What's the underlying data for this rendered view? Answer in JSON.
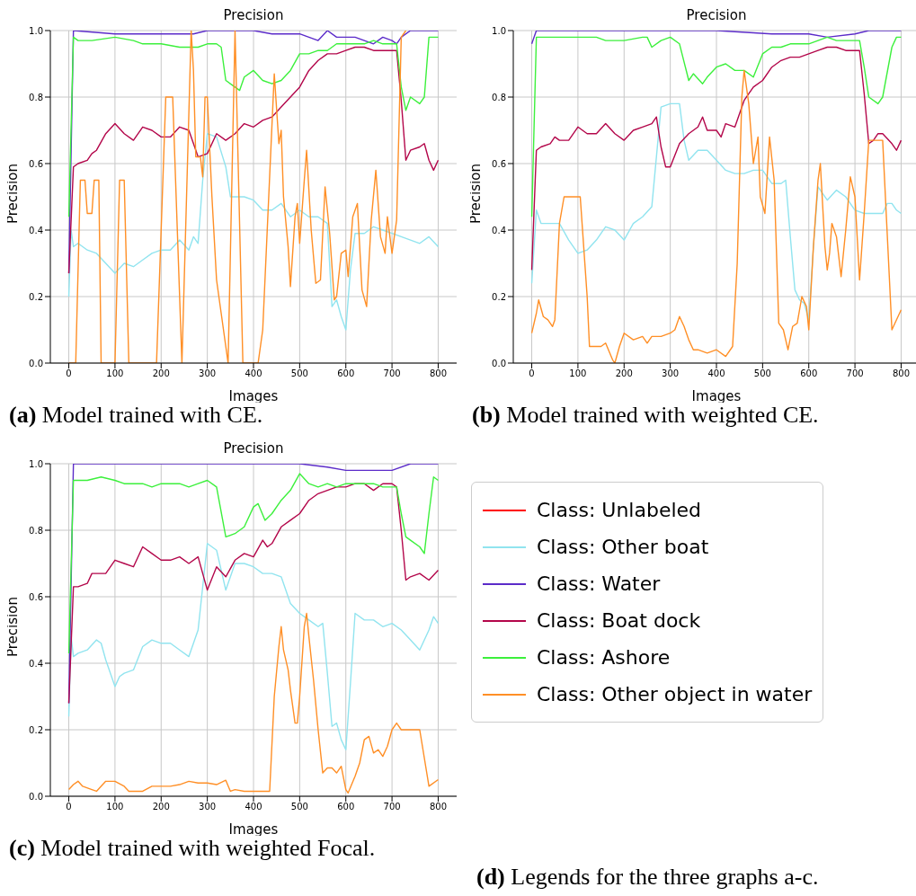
{
  "chart_data": [
    {
      "type": "line",
      "title": "Precision",
      "xlabel": "Images",
      "ylabel": "Precision",
      "annotations": [
        "(a) Model trained with CE."
      ],
      "xlim": [
        -40,
        840
      ],
      "ylim": [
        0,
        1
      ],
      "xticks": [
        0,
        100,
        200,
        300,
        400,
        500,
        600,
        700,
        800
      ],
      "yticks": [
        {
          "value": 0,
          "label": "0.0"
        },
        {
          "value": 0.2,
          "label": "0.2"
        },
        {
          "value": 0.4,
          "label": "0.4"
        },
        {
          "value": 0.6,
          "label": "0.6"
        },
        {
          "value": 0.8,
          "label": "0.8"
        },
        {
          "value": 1,
          "label": "1.0"
        }
      ],
      "grid": true,
      "legend": false,
      "series": [
        {
          "color": "#91e4ef",
          "x": [
            0,
            5,
            10,
            20,
            40,
            60,
            80,
            100,
            120,
            140,
            160,
            180,
            200,
            220,
            240,
            260,
            270,
            280,
            290,
            300,
            320,
            340,
            350,
            380,
            400,
            420,
            440,
            460,
            480,
            500,
            520,
            540,
            560,
            570,
            580,
            590,
            600,
            610,
            620,
            640,
            660,
            680,
            700,
            720,
            740,
            760,
            780,
            800
          ],
          "values": [
            0.2,
            0.4,
            0.35,
            0.36,
            0.34,
            0.33,
            0.3,
            0.27,
            0.3,
            0.29,
            0.31,
            0.33,
            0.34,
            0.34,
            0.37,
            0.34,
            0.38,
            0.36,
            0.55,
            0.69,
            0.68,
            0.59,
            0.5,
            0.5,
            0.49,
            0.46,
            0.46,
            0.48,
            0.44,
            0.46,
            0.44,
            0.44,
            0.42,
            0.17,
            0.19,
            0.14,
            0.1,
            0.28,
            0.39,
            0.39,
            0.41,
            0.4,
            0.39,
            0.38,
            0.37,
            0.36,
            0.38,
            0.35
          ]
        },
        {
          "color": "#5b2bc9",
          "x": [
            0,
            10,
            100,
            270,
            300,
            400,
            440,
            500,
            520,
            540,
            560,
            580,
            600,
            620,
            640,
            660,
            680,
            700,
            710,
            720,
            740,
            800
          ],
          "values": [
            0.27,
            1.0,
            0.99,
            0.99,
            1.0,
            1.0,
            0.99,
            0.99,
            0.98,
            0.97,
            1.0,
            0.98,
            0.98,
            0.98,
            0.97,
            0.96,
            0.98,
            0.97,
            0.96,
            0.98,
            1.0,
            1.0
          ]
        },
        {
          "color": "#b3064a",
          "x": [
            0,
            10,
            20,
            40,
            50,
            60,
            80,
            100,
            120,
            140,
            160,
            180,
            200,
            220,
            240,
            260,
            280,
            300,
            320,
            340,
            360,
            380,
            400,
            420,
            440,
            460,
            480,
            500,
            520,
            540,
            560,
            580,
            600,
            620,
            640,
            660,
            680,
            700,
            710,
            720,
            730,
            740,
            760,
            770,
            780,
            790,
            800
          ],
          "values": [
            0.27,
            0.59,
            0.6,
            0.61,
            0.63,
            0.64,
            0.69,
            0.72,
            0.69,
            0.67,
            0.71,
            0.7,
            0.68,
            0.68,
            0.71,
            0.7,
            0.62,
            0.63,
            0.69,
            0.67,
            0.69,
            0.72,
            0.71,
            0.73,
            0.74,
            0.77,
            0.8,
            0.83,
            0.88,
            0.91,
            0.93,
            0.93,
            0.94,
            0.95,
            0.95,
            0.94,
            0.94,
            0.94,
            0.94,
            0.79,
            0.61,
            0.64,
            0.65,
            0.66,
            0.61,
            0.58,
            0.61
          ]
        },
        {
          "color": "#3cf03c",
          "x": [
            0,
            10,
            20,
            50,
            100,
            140,
            160,
            200,
            240,
            280,
            300,
            320,
            330,
            340,
            360,
            370,
            380,
            400,
            420,
            440,
            460,
            480,
            500,
            520,
            540,
            560,
            580,
            600,
            620,
            640,
            660,
            680,
            700,
            710,
            720,
            730,
            740,
            760,
            770,
            780,
            800
          ],
          "values": [
            0.44,
            0.98,
            0.97,
            0.97,
            0.98,
            0.97,
            0.96,
            0.96,
            0.95,
            0.95,
            0.96,
            0.96,
            0.95,
            0.85,
            0.83,
            0.82,
            0.86,
            0.88,
            0.85,
            0.84,
            0.85,
            0.88,
            0.93,
            0.93,
            0.94,
            0.94,
            0.96,
            0.96,
            0.96,
            0.96,
            0.97,
            0.96,
            0.96,
            0.96,
            0.83,
            0.76,
            0.8,
            0.78,
            0.8,
            0.98,
            0.98
          ]
        },
        {
          "color": "#ff8f26",
          "x": [
            0,
            15,
            25,
            35,
            40,
            50,
            55,
            65,
            70,
            100,
            110,
            120,
            130,
            190,
            210,
            225,
            245,
            265,
            270,
            275,
            285,
            290,
            295,
            300,
            310,
            320,
            330,
            340,
            345,
            360,
            377,
            410,
            420,
            445,
            455,
            460,
            465,
            475,
            480,
            490,
            495,
            500,
            510,
            515,
            525,
            535,
            545,
            555,
            565,
            575,
            580,
            590,
            600,
            605,
            615,
            625,
            635,
            645,
            655,
            665,
            675,
            685,
            690,
            700,
            710,
            720,
            730
          ],
          "values": [
            0,
            0,
            0.55,
            0.55,
            0.45,
            0.45,
            0.55,
            0.55,
            0,
            0,
            0.55,
            0.55,
            0,
            0,
            0.8,
            0.8,
            0,
            1.0,
            0.88,
            0.62,
            0.62,
            0.56,
            0.8,
            0.8,
            0.5,
            0.25,
            0.15,
            0.05,
            0,
            1.0,
            0,
            0,
            0.1,
            0.87,
            0.66,
            0.7,
            0.5,
            0.35,
            0.23,
            0.44,
            0.48,
            0.36,
            0.55,
            0.64,
            0.4,
            0.24,
            0.25,
            0.53,
            0.39,
            0.19,
            0.2,
            0.33,
            0.34,
            0.26,
            0.44,
            0.48,
            0.22,
            0.17,
            0.43,
            0.58,
            0.38,
            0.33,
            0.44,
            0.33,
            0.43,
            0.98,
            1.0
          ]
        }
      ]
    },
    {
      "type": "line",
      "title": "Precision",
      "xlabel": "Images",
      "ylabel": "Precision",
      "annotations": [
        "(b) Model trained with weighted CE."
      ],
      "xlim": [
        -40,
        840
      ],
      "ylim": [
        0,
        1
      ],
      "xticks": [
        0,
        100,
        200,
        300,
        400,
        500,
        600,
        700,
        800
      ],
      "yticks": [
        {
          "value": 0,
          "label": "0.0"
        },
        {
          "value": 0.2,
          "label": "0.2"
        },
        {
          "value": 0.4,
          "label": "0.4"
        },
        {
          "value": 0.6,
          "label": "0.6"
        },
        {
          "value": 0.8,
          "label": "0.8"
        },
        {
          "value": 1,
          "label": "1.0"
        }
      ],
      "grid": true,
      "legend": false,
      "series": [
        {
          "color": "#91e4ef",
          "x": [
            0,
            10,
            20,
            40,
            60,
            80,
            100,
            120,
            140,
            160,
            180,
            200,
            220,
            240,
            260,
            280,
            300,
            320,
            330,
            340,
            360,
            380,
            400,
            420,
            440,
            460,
            480,
            500,
            520,
            540,
            550,
            560,
            570,
            580,
            590,
            600,
            610,
            620,
            640,
            660,
            680,
            700,
            720,
            740,
            760,
            770,
            780,
            790,
            800
          ],
          "values": [
            0.24,
            0.46,
            0.42,
            0.42,
            0.42,
            0.37,
            0.33,
            0.34,
            0.37,
            0.41,
            0.4,
            0.37,
            0.42,
            0.44,
            0.47,
            0.77,
            0.78,
            0.78,
            0.67,
            0.61,
            0.64,
            0.64,
            0.61,
            0.58,
            0.57,
            0.57,
            0.58,
            0.58,
            0.54,
            0.54,
            0.55,
            0.38,
            0.22,
            0.19,
            0.18,
            0.13,
            0.35,
            0.53,
            0.49,
            0.52,
            0.5,
            0.46,
            0.45,
            0.45,
            0.45,
            0.48,
            0.48,
            0.46,
            0.45
          ]
        },
        {
          "color": "#5b2bc9",
          "x": [
            0,
            10,
            400,
            520,
            600,
            640,
            700,
            730,
            800
          ],
          "values": [
            0.96,
            1.0,
            1.0,
            0.99,
            0.99,
            0.98,
            0.99,
            1.0,
            1.0
          ]
        },
        {
          "color": "#b3064a",
          "x": [
            0,
            10,
            20,
            40,
            50,
            60,
            80,
            100,
            120,
            140,
            160,
            180,
            200,
            220,
            240,
            260,
            270,
            280,
            290,
            300,
            320,
            340,
            360,
            370,
            380,
            400,
            410,
            420,
            440,
            460,
            480,
            500,
            520,
            540,
            560,
            580,
            600,
            620,
            640,
            660,
            680,
            700,
            710,
            720,
            730,
            740,
            750,
            760,
            780,
            790,
            800
          ],
          "values": [
            0.28,
            0.64,
            0.65,
            0.66,
            0.68,
            0.67,
            0.67,
            0.71,
            0.69,
            0.69,
            0.72,
            0.69,
            0.67,
            0.7,
            0.71,
            0.72,
            0.74,
            0.65,
            0.59,
            0.59,
            0.66,
            0.69,
            0.71,
            0.74,
            0.7,
            0.7,
            0.68,
            0.72,
            0.71,
            0.79,
            0.83,
            0.85,
            0.89,
            0.91,
            0.92,
            0.92,
            0.93,
            0.94,
            0.95,
            0.95,
            0.94,
            0.94,
            0.94,
            0.81,
            0.66,
            0.67,
            0.69,
            0.69,
            0.66,
            0.64,
            0.67
          ]
        },
        {
          "color": "#3cf03c",
          "x": [
            0,
            10,
            20,
            60,
            100,
            140,
            160,
            180,
            200,
            240,
            250,
            260,
            280,
            300,
            320,
            340,
            350,
            370,
            380,
            400,
            420,
            440,
            460,
            480,
            500,
            520,
            540,
            560,
            580,
            600,
            620,
            640,
            660,
            680,
            700,
            710,
            720,
            730,
            750,
            760,
            780,
            790,
            800
          ],
          "values": [
            0.44,
            0.98,
            0.98,
            0.98,
            0.98,
            0.98,
            0.97,
            0.97,
            0.97,
            0.98,
            0.98,
            0.95,
            0.97,
            0.98,
            0.96,
            0.85,
            0.87,
            0.84,
            0.86,
            0.89,
            0.9,
            0.88,
            0.88,
            0.86,
            0.93,
            0.95,
            0.95,
            0.96,
            0.96,
            0.96,
            0.97,
            0.98,
            0.97,
            0.97,
            0.97,
            0.97,
            0.89,
            0.8,
            0.78,
            0.8,
            0.95,
            0.98,
            0.98
          ]
        },
        {
          "color": "#ff8f26",
          "x": [
            0,
            10,
            15,
            25,
            35,
            45,
            50,
            60,
            70,
            105,
            120,
            125,
            150,
            160,
            175,
            180,
            190,
            200,
            220,
            240,
            250,
            260,
            280,
            300,
            310,
            320,
            330,
            340,
            350,
            360,
            380,
            400,
            420,
            435,
            445,
            455,
            460,
            470,
            480,
            490,
            495,
            505,
            515,
            525,
            535,
            545,
            555,
            565,
            575,
            585,
            595,
            600,
            610,
            620,
            625,
            635,
            640,
            645,
            650,
            660,
            670,
            680,
            690,
            700,
            710,
            720,
            730,
            760,
            780,
            800
          ],
          "values": [
            0.09,
            0.15,
            0.19,
            0.14,
            0.13,
            0.11,
            0.13,
            0.42,
            0.5,
            0.5,
            0.2,
            0.05,
            0.05,
            0.06,
            0.01,
            0,
            0.05,
            0.09,
            0.07,
            0.08,
            0.06,
            0.08,
            0.08,
            0.09,
            0.1,
            0.14,
            0.11,
            0.07,
            0.04,
            0.04,
            0.03,
            0.04,
            0.02,
            0.05,
            0.3,
            0.8,
            0.88,
            0.78,
            0.6,
            0.68,
            0.5,
            0.45,
            0.68,
            0.55,
            0.12,
            0.1,
            0.04,
            0.11,
            0.12,
            0.2,
            0.17,
            0.1,
            0.35,
            0.55,
            0.6,
            0.35,
            0.28,
            0.33,
            0.42,
            0.38,
            0.26,
            0.4,
            0.56,
            0.5,
            0.25,
            0.45,
            0.67,
            0.67,
            0.1,
            0.16
          ]
        }
      ]
    },
    {
      "type": "line",
      "title": "Precision",
      "xlabel": "Images",
      "ylabel": "Precision",
      "annotations": [
        "(c) Model trained with weighted Focal.",
        "(d) Legends for the three graphs a-c."
      ],
      "xlim": [
        -40,
        840
      ],
      "ylim": [
        0,
        1
      ],
      "xticks": [
        0,
        100,
        200,
        300,
        400,
        500,
        600,
        700,
        800
      ],
      "yticks": [
        {
          "value": 0,
          "label": "0.0"
        },
        {
          "value": 0.2,
          "label": "0.2"
        },
        {
          "value": 0.4,
          "label": "0.4"
        },
        {
          "value": 0.6,
          "label": "0.6"
        },
        {
          "value": 0.8,
          "label": "0.8"
        },
        {
          "value": 1,
          "label": "1.0"
        }
      ],
      "grid": true,
      "legend": "right",
      "series": [
        {
          "name": "Class: Unlabeled",
          "color": "#ff0000"
        },
        {
          "name": "Class: Other boat",
          "color": "#91e4ef",
          "x": [
            0,
            5,
            10,
            20,
            40,
            60,
            70,
            80,
            100,
            110,
            120,
            140,
            160,
            180,
            200,
            220,
            240,
            260,
            280,
            300,
            320,
            340,
            360,
            380,
            400,
            420,
            440,
            460,
            480,
            500,
            520,
            540,
            550,
            560,
            570,
            580,
            590,
            600,
            610,
            620,
            640,
            660,
            680,
            700,
            720,
            740,
            760,
            780,
            790,
            800
          ],
          "values": [
            0.24,
            0.48,
            0.42,
            0.43,
            0.44,
            0.47,
            0.46,
            0.41,
            0.33,
            0.36,
            0.37,
            0.38,
            0.45,
            0.47,
            0.46,
            0.46,
            0.44,
            0.42,
            0.5,
            0.76,
            0.74,
            0.62,
            0.7,
            0.7,
            0.69,
            0.67,
            0.67,
            0.66,
            0.58,
            0.55,
            0.53,
            0.51,
            0.52,
            0.37,
            0.21,
            0.22,
            0.17,
            0.14,
            0.34,
            0.55,
            0.53,
            0.53,
            0.51,
            0.52,
            0.5,
            0.47,
            0.44,
            0.5,
            0.54,
            0.52
          ]
        },
        {
          "name": "Class: Water",
          "color": "#5b2bc9",
          "x": [
            0,
            10,
            500,
            560,
            600,
            640,
            700,
            740,
            800
          ],
          "values": [
            0.28,
            1.0,
            1.0,
            0.99,
            0.98,
            0.98,
            0.98,
            1.0,
            1.0
          ]
        },
        {
          "name": "Class: Boat dock",
          "color": "#b3064a",
          "x": [
            0,
            10,
            20,
            40,
            50,
            60,
            80,
            100,
            120,
            140,
            160,
            180,
            200,
            220,
            240,
            260,
            280,
            300,
            320,
            340,
            360,
            380,
            400,
            420,
            430,
            440,
            460,
            480,
            500,
            520,
            540,
            560,
            580,
            600,
            620,
            640,
            660,
            680,
            700,
            710,
            720,
            730,
            740,
            760,
            780,
            800
          ],
          "values": [
            0.28,
            0.63,
            0.63,
            0.64,
            0.67,
            0.67,
            0.67,
            0.71,
            0.7,
            0.69,
            0.75,
            0.73,
            0.71,
            0.71,
            0.72,
            0.7,
            0.72,
            0.62,
            0.69,
            0.66,
            0.71,
            0.73,
            0.72,
            0.77,
            0.75,
            0.76,
            0.81,
            0.83,
            0.85,
            0.89,
            0.91,
            0.92,
            0.93,
            0.93,
            0.94,
            0.94,
            0.92,
            0.94,
            0.94,
            0.93,
            0.8,
            0.65,
            0.66,
            0.67,
            0.65,
            0.68
          ]
        },
        {
          "name": "Class: Ashore",
          "color": "#3cf03c",
          "x": [
            0,
            10,
            40,
            70,
            100,
            120,
            140,
            160,
            180,
            200,
            220,
            240,
            260,
            280,
            300,
            320,
            340,
            360,
            380,
            400,
            410,
            425,
            440,
            460,
            480,
            500,
            520,
            540,
            560,
            580,
            600,
            620,
            640,
            660,
            680,
            700,
            710,
            720,
            730,
            740,
            760,
            770,
            780,
            790,
            800
          ],
          "values": [
            0.43,
            0.95,
            0.95,
            0.96,
            0.95,
            0.94,
            0.94,
            0.94,
            0.93,
            0.94,
            0.94,
            0.94,
            0.93,
            0.94,
            0.95,
            0.93,
            0.78,
            0.79,
            0.81,
            0.87,
            0.88,
            0.83,
            0.85,
            0.89,
            0.92,
            0.97,
            0.94,
            0.93,
            0.94,
            0.93,
            0.94,
            0.94,
            0.94,
            0.94,
            0.93,
            0.93,
            0.93,
            0.85,
            0.78,
            0.77,
            0.75,
            0.73,
            0.85,
            0.96,
            0.95
          ]
        },
        {
          "name": "Class: Other object in water",
          "color": "#ff8f26",
          "x": [
            0,
            10,
            20,
            30,
            50,
            60,
            80,
            100,
            120,
            130,
            160,
            180,
            220,
            240,
            260,
            280,
            300,
            320,
            340,
            350,
            360,
            380,
            400,
            420,
            435,
            445,
            455,
            460,
            465,
            475,
            480,
            490,
            495,
            500,
            510,
            515,
            520,
            530,
            540,
            550,
            560,
            570,
            580,
            590,
            600,
            605,
            620,
            630,
            640,
            650,
            660,
            670,
            680,
            690,
            700,
            710,
            720,
            760,
            780,
            800
          ],
          "values": [
            0.02,
            0.035,
            0.045,
            0.03,
            0.02,
            0.015,
            0.045,
            0.045,
            0.03,
            0.015,
            0.015,
            0.03,
            0.03,
            0.035,
            0.045,
            0.04,
            0.04,
            0.035,
            0.048,
            0.015,
            0.02,
            0.015,
            0.015,
            0.015,
            0.015,
            0.3,
            0.45,
            0.51,
            0.44,
            0.38,
            0.32,
            0.22,
            0.22,
            0.3,
            0.51,
            0.55,
            0.48,
            0.35,
            0.2,
            0.07,
            0.085,
            0.085,
            0.07,
            0.09,
            0.02,
            0.01,
            0.06,
            0.1,
            0.17,
            0.18,
            0.13,
            0.14,
            0.12,
            0.15,
            0.2,
            0.22,
            0.2,
            0.2,
            0.03,
            0.05
          ]
        }
      ]
    }
  ]
}
